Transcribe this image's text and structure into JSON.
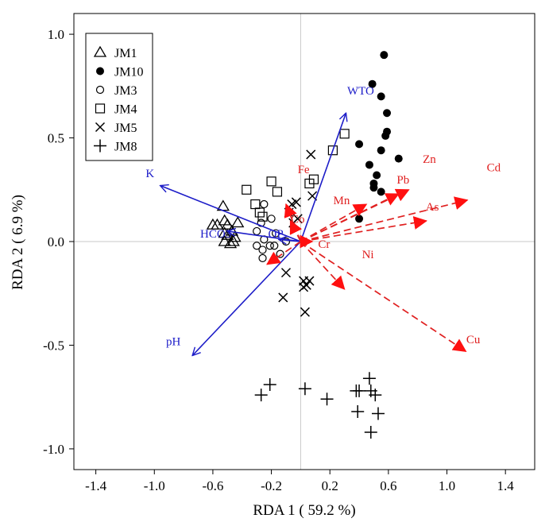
{
  "chart_data": {
    "type": "scatter",
    "subtype": "rda-biplot",
    "xlabel": "RDA 1 ( 59.2 %)",
    "ylabel": "RDA 2 ( 6.9 %)",
    "xlim": [
      -1.55,
      1.6
    ],
    "ylim": [
      -1.1,
      1.1
    ],
    "xticks": [
      -1.4,
      -1.0,
      -0.6,
      -0.2,
      0.2,
      0.6,
      1.0,
      1.4
    ],
    "xtick_labels": [
      "-1.4",
      "-1.0",
      "-0.6",
      "-0.2",
      "0.2",
      "0.6",
      "1.0",
      "1.4"
    ],
    "yticks": [
      -1.0,
      -0.5,
      0.0,
      0.5,
      1.0
    ],
    "ytick_labels": [
      "-1.0",
      "-0.5",
      "0.0",
      "0.5",
      "1.0"
    ],
    "legend_position": "top-left",
    "legend": [
      {
        "name": "JM1",
        "marker": "triangle"
      },
      {
        "name": "JM10",
        "marker": "filled-circle"
      },
      {
        "name": "JM3",
        "marker": "open-circle"
      },
      {
        "name": "JM4",
        "marker": "square"
      },
      {
        "name": "JM5",
        "marker": "x"
      },
      {
        "name": "JM8",
        "marker": "plus"
      }
    ],
    "series": [
      {
        "name": "JM1",
        "marker": "triangle",
        "points": [
          [
            -0.53,
            0.17
          ],
          [
            -0.6,
            0.08
          ],
          [
            -0.57,
            0.08
          ],
          [
            -0.52,
            0.1
          ],
          [
            -0.5,
            0.08
          ],
          [
            -0.47,
            0.05
          ],
          [
            -0.52,
            0.04
          ],
          [
            -0.43,
            0.09
          ],
          [
            -0.5,
            0.03
          ],
          [
            -0.45,
            0.02
          ],
          [
            -0.52,
            0.0
          ],
          [
            -0.48,
            -0.01
          ],
          [
            -0.46,
            0.0
          ]
        ]
      },
      {
        "name": "JM10",
        "marker": "filled-circle",
        "points": [
          [
            0.57,
            0.9
          ],
          [
            0.49,
            0.76
          ],
          [
            0.55,
            0.7
          ],
          [
            0.59,
            0.62
          ],
          [
            0.59,
            0.53
          ],
          [
            0.58,
            0.51
          ],
          [
            0.4,
            0.47
          ],
          [
            0.67,
            0.4
          ],
          [
            0.55,
            0.44
          ],
          [
            0.47,
            0.37
          ],
          [
            0.52,
            0.32
          ],
          [
            0.5,
            0.28
          ],
          [
            0.5,
            0.26
          ],
          [
            0.55,
            0.24
          ],
          [
            0.4,
            0.11
          ]
        ]
      },
      {
        "name": "JM3",
        "marker": "open-circle",
        "points": [
          [
            -0.25,
            0.18
          ],
          [
            -0.2,
            0.11
          ],
          [
            -0.27,
            0.09
          ],
          [
            -0.3,
            0.05
          ],
          [
            -0.17,
            0.04
          ],
          [
            -0.25,
            0.01
          ],
          [
            -0.21,
            -0.02
          ],
          [
            -0.18,
            -0.02
          ],
          [
            -0.3,
            -0.02
          ],
          [
            -0.26,
            -0.04
          ],
          [
            -0.14,
            -0.06
          ],
          [
            -0.26,
            -0.08
          ],
          [
            -0.1,
            0.0
          ]
        ]
      },
      {
        "name": "JM4",
        "marker": "square",
        "points": [
          [
            0.3,
            0.52
          ],
          [
            0.22,
            0.44
          ],
          [
            0.06,
            0.28
          ],
          [
            0.09,
            0.3
          ],
          [
            -0.37,
            0.25
          ],
          [
            -0.2,
            0.29
          ],
          [
            -0.16,
            0.24
          ],
          [
            -0.31,
            0.18
          ],
          [
            -0.28,
            0.14
          ],
          [
            -0.26,
            0.12
          ]
        ]
      },
      {
        "name": "JM5",
        "marker": "x",
        "points": [
          [
            0.07,
            0.42
          ],
          [
            -0.06,
            0.18
          ],
          [
            -0.03,
            0.19
          ],
          [
            0.08,
            0.22
          ],
          [
            -0.08,
            0.14
          ],
          [
            -0.02,
            0.11
          ],
          [
            -0.05,
            0.09
          ],
          [
            -0.1,
            -0.15
          ],
          [
            0.06,
            -0.19
          ],
          [
            0.02,
            -0.19
          ],
          [
            0.02,
            -0.22
          ],
          [
            0.04,
            -0.21
          ],
          [
            -0.12,
            -0.27
          ],
          [
            0.03,
            -0.34
          ]
        ]
      },
      {
        "name": "JM8",
        "marker": "plus",
        "points": [
          [
            -0.27,
            -0.74
          ],
          [
            -0.21,
            -0.69
          ],
          [
            0.03,
            -0.71
          ],
          [
            0.18,
            -0.76
          ],
          [
            0.38,
            -0.72
          ],
          [
            0.4,
            -0.72
          ],
          [
            0.47,
            -0.66
          ],
          [
            0.48,
            -0.72
          ],
          [
            0.51,
            -0.74
          ],
          [
            0.39,
            -0.82
          ],
          [
            0.53,
            -0.83
          ],
          [
            0.48,
            -0.92
          ]
        ]
      }
    ],
    "explanatory_vectors": [
      {
        "label": "WTO",
        "end": [
          0.31,
          0.62
        ],
        "label_at": [
          0.41,
          0.71
        ]
      },
      {
        "label": "K",
        "end": [
          -0.96,
          0.27
        ],
        "label_at": [
          -1.03,
          0.31
        ]
      },
      {
        "label": "pH",
        "end": [
          -0.74,
          -0.55
        ],
        "label_at": [
          -0.87,
          -0.5
        ]
      },
      {
        "label": "HCO3",
        "end": [
          -0.5,
          0.05
        ],
        "label_at": [
          -0.58,
          0.02
        ]
      },
      {
        "label": "OP",
        "end": [
          -0.15,
          0.01
        ],
        "label_at": [
          -0.17,
          0.02
        ]
      }
    ],
    "response_vectors": [
      {
        "label": "Cd",
        "end": [
          1.14,
          0.2
        ],
        "label_at": [
          1.32,
          0.34
        ]
      },
      {
        "label": "Zn",
        "end": [
          0.74,
          0.25
        ],
        "label_at": [
          0.88,
          0.38
        ]
      },
      {
        "label": "Pb",
        "end": [
          0.67,
          0.23
        ],
        "label_at": [
          0.7,
          0.28
        ]
      },
      {
        "label": "As",
        "end": [
          0.86,
          0.1
        ],
        "label_at": [
          0.9,
          0.15
        ]
      },
      {
        "label": "Cu",
        "end": [
          1.13,
          -0.53
        ],
        "label_at": [
          1.18,
          -0.49
        ]
      },
      {
        "label": "Ni",
        "end": [
          0.3,
          -0.23
        ],
        "label_at": [
          0.46,
          -0.08
        ]
      },
      {
        "label": "Mn",
        "end": [
          0.45,
          0.18
        ],
        "label_at": [
          0.28,
          0.18
        ]
      },
      {
        "label": "Fe",
        "end": [
          -0.1,
          0.18
        ],
        "label_at": [
          0.02,
          0.33
        ]
      },
      {
        "label": "Co",
        "end": [
          -0.07,
          0.1
        ],
        "label_at": [
          -0.02,
          0.09
        ]
      },
      {
        "label": "Cr",
        "end": [
          0.08,
          0.0
        ],
        "label_at": [
          0.16,
          -0.03
        ]
      },
      {
        "label": "",
        "end": [
          -0.23,
          -0.11
        ],
        "label_at": null
      }
    ]
  },
  "colors": {
    "explanatory": "#1c1cc8",
    "response": "#e02020",
    "response_head": "#ff1010",
    "points": "#000000",
    "axis": "#000000",
    "zero_lines": "#c8c8c8"
  }
}
